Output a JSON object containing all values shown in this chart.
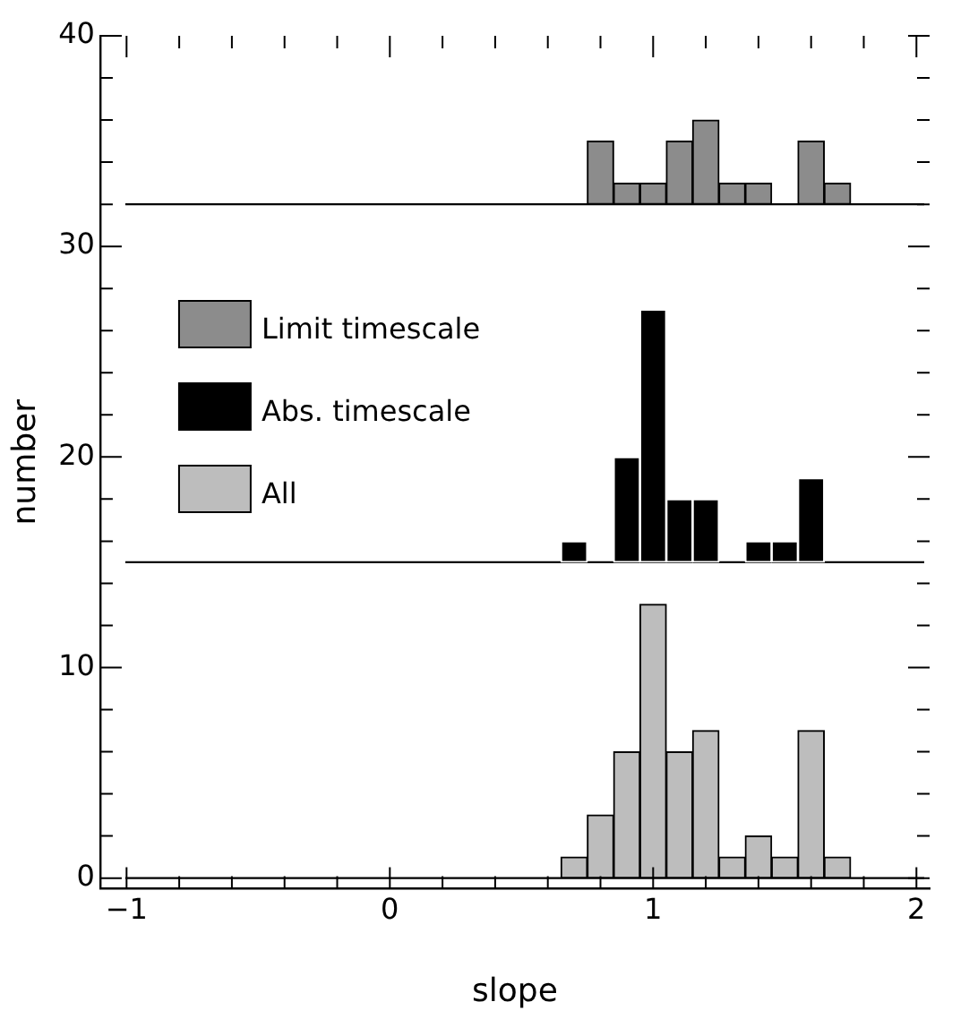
{
  "chart_data": {
    "type": "histogram",
    "xlabel": "slope",
    "ylabel": "number",
    "bins": [
      0.65,
      0.75,
      0.85,
      0.95,
      1.05,
      1.15,
      1.25,
      1.35,
      1.45,
      1.55,
      1.65,
      1.75
    ],
    "series": [
      {
        "name": "Limit timescale",
        "color": "#8c8c8c",
        "base": [
          32,
          32,
          32,
          32,
          32,
          32,
          32,
          32,
          32,
          32,
          32
        ],
        "values": [
          0,
          3,
          1,
          1,
          3,
          4,
          1,
          1,
          0,
          3,
          1
        ]
      },
      {
        "name": "Abs. timescale",
        "color": "#000000",
        "base": [
          15,
          15,
          15,
          15,
          15,
          15,
          15,
          15,
          15,
          15,
          15
        ],
        "values": [
          1,
          0,
          5,
          12,
          3,
          3,
          0,
          1,
          1,
          4,
          0
        ]
      },
      {
        "name": "All",
        "color": "#bdbdbd",
        "base": [
          0,
          0,
          0,
          0,
          0,
          0,
          0,
          0,
          0,
          0,
          0
        ],
        "values": [
          1,
          3,
          6,
          13,
          6,
          7,
          1,
          2,
          1,
          7,
          1
        ]
      }
    ],
    "ref_lines": [
      {
        "axis": "y",
        "value": 0,
        "color": "#000000"
      },
      {
        "axis": "y",
        "value": 15,
        "color": "#000000"
      },
      {
        "axis": "y",
        "value": 32,
        "color": "#000000"
      }
    ],
    "xlim": [
      -1.1,
      2.05
    ],
    "xticks": [
      -1,
      {
        "value": -0.8,
        "label": null
      },
      {
        "value": -0.6,
        "label": null
      },
      {
        "value": -0.4,
        "label": null
      },
      {
        "value": -0.2,
        "label": null
      },
      0,
      {
        "value": 0.2,
        "label": null
      },
      {
        "value": 0.4,
        "label": null
      },
      {
        "value": 0.6,
        "label": null
      },
      {
        "value": 0.8,
        "label": null
      },
      1,
      {
        "value": 1.2,
        "label": null
      },
      {
        "value": 1.4,
        "label": null
      },
      {
        "value": 1.6,
        "label": null
      },
      {
        "value": 1.8,
        "label": null
      },
      2
    ],
    "ylim": [
      -0.5,
      40
    ],
    "yticks": [
      0,
      {
        "value": 2,
        "label": null
      },
      {
        "value": 4,
        "label": null
      },
      {
        "value": 6,
        "label": null
      },
      {
        "value": 8,
        "label": null
      },
      10,
      {
        "value": 12,
        "label": null
      },
      {
        "value": 14,
        "label": null
      },
      {
        "value": 16,
        "label": null
      },
      {
        "value": 18,
        "label": null
      },
      20,
      {
        "value": 22,
        "label": null
      },
      {
        "value": 24,
        "label": null
      },
      {
        "value": 26,
        "label": null
      },
      {
        "value": 28,
        "label": null
      },
      30,
      {
        "value": 32,
        "label": null
      },
      {
        "value": 34,
        "label": null
      },
      {
        "value": 36,
        "label": null
      },
      {
        "value": 38,
        "label": null
      },
      40
    ],
    "grid": false,
    "legend": "left"
  }
}
